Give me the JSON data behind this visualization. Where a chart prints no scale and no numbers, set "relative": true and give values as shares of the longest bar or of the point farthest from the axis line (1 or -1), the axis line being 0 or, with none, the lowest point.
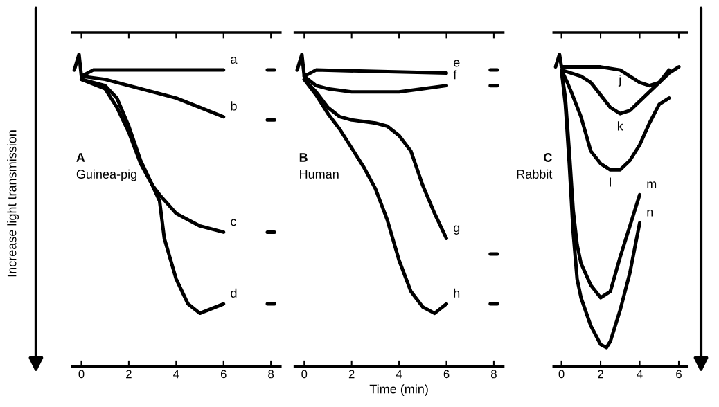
{
  "chart_data": [
    {
      "type": "line",
      "relative": true,
      "ylabel": "Increase light transmission",
      "annotations": [
        "A",
        "Guinea-pig"
      ],
      "xlim": [
        -0.4,
        8.4
      ],
      "xticks": [
        0,
        2,
        4,
        6,
        8
      ],
      "tick_labels": "x",
      "grid": false,
      "legend": false,
      "marker": "none",
      "line_style": "solid",
      "series": [
        {
          "name": "a",
          "color": "#000000",
          "x": [
            -0.3,
            -0.1,
            0,
            0.5,
            6,
            7,
            7.85,
            8.15
          ],
          "values": [
            0.95,
            1,
            0.93,
            0.95,
            0.95,
            null,
            0.95,
            0.95
          ]
        },
        {
          "name": "b",
          "color": "#000000",
          "x": [
            0,
            1,
            2,
            3,
            4,
            5,
            6,
            7,
            7.85,
            8.15
          ],
          "values": [
            0.93,
            0.92,
            0.9,
            0.88,
            0.86,
            0.83,
            0.8,
            null,
            0.79,
            0.79
          ]
        },
        {
          "name": "c",
          "color": "#000000",
          "x": [
            0,
            1,
            1.5,
            2,
            2.5,
            3,
            3.3,
            4,
            5,
            6,
            7,
            7.85,
            8.15
          ],
          "values": [
            0.92,
            0.9,
            0.86,
            0.77,
            0.66,
            0.58,
            0.55,
            0.49,
            0.45,
            0.43,
            null,
            0.43,
            0.43
          ]
        },
        {
          "name": "d",
          "color": "#000000",
          "x": [
            0,
            1,
            1.5,
            2,
            2.5,
            3,
            3.3,
            3.5,
            4,
            4.5,
            5,
            6,
            7,
            7.85,
            8.15
          ],
          "values": [
            0.92,
            0.89,
            0.83,
            0.75,
            0.65,
            0.58,
            0.53,
            0.41,
            0.28,
            0.2,
            0.17,
            0.2,
            null,
            0.2,
            0.2
          ]
        }
      ]
    },
    {
      "type": "line",
      "relative": true,
      "xlabel": "Time (min)",
      "annotations": [
        "B",
        "Human"
      ],
      "xlim": [
        -0.4,
        8.4
      ],
      "xticks": [
        0,
        2,
        4,
        6,
        8
      ],
      "tick_labels": "x",
      "grid": false,
      "legend": false,
      "marker": "none",
      "line_style": "solid",
      "series": [
        {
          "name": "e",
          "color": "#000000",
          "x": [
            -0.3,
            -0.1,
            0,
            0.5,
            6,
            7,
            7.85,
            8.15
          ],
          "values": [
            0.95,
            1,
            0.93,
            0.95,
            0.94,
            null,
            0.95,
            0.95
          ]
        },
        {
          "name": "f",
          "color": "#000000",
          "x": [
            0,
            0.5,
            1,
            2,
            3,
            4,
            5,
            6,
            7,
            7.85,
            8.15
          ],
          "values": [
            0.93,
            0.9,
            0.89,
            0.88,
            0.88,
            0.88,
            0.89,
            0.9,
            null,
            0.9,
            0.9
          ]
        },
        {
          "name": "g",
          "color": "#000000",
          "x": [
            0,
            0.5,
            1,
            1.5,
            2,
            3,
            3.5,
            4,
            4.5,
            5,
            5.5,
            6,
            7,
            7.85,
            8.15
          ],
          "values": [
            0.92,
            0.88,
            0.83,
            0.8,
            0.79,
            0.78,
            0.77,
            0.74,
            0.69,
            0.58,
            0.49,
            0.41,
            null,
            0.36,
            0.36
          ]
        },
        {
          "name": "h",
          "color": "#000000",
          "x": [
            0,
            0.5,
            1,
            1.5,
            2,
            2.5,
            3,
            3.5,
            4,
            4.5,
            5,
            5.5,
            6,
            7,
            7.85,
            8.15
          ],
          "values": [
            0.92,
            0.87,
            0.81,
            0.76,
            0.7,
            0.64,
            0.57,
            0.47,
            0.34,
            0.24,
            0.19,
            0.17,
            0.2,
            null,
            0.2,
            0.2
          ]
        }
      ]
    },
    {
      "type": "line",
      "relative": true,
      "annotations": [
        "C",
        "Rabbit"
      ],
      "xlim": [
        -0.4,
        6.4
      ],
      "xticks": [
        0,
        2,
        4,
        6
      ],
      "tick_labels": "x",
      "grid": false,
      "legend": false,
      "marker": "none",
      "line_style": "solid",
      "series": [
        {
          "name": "j",
          "color": "#000000",
          "x": [
            -0.3,
            -0.1,
            0,
            1,
            2,
            3,
            4,
            4.5,
            5,
            5.5,
            6
          ],
          "values": [
            0.96,
            1,
            0.96,
            0.96,
            0.96,
            0.95,
            0.91,
            0.9,
            0.91,
            0.94,
            0.96
          ]
        },
        {
          "name": "k",
          "color": "#000000",
          "x": [
            0,
            0.5,
            1,
            1.5,
            2,
            2.5,
            3,
            3.5,
            4,
            4.5,
            5,
            5.5
          ],
          "values": [
            0.95,
            0.94,
            0.93,
            0.91,
            0.87,
            0.83,
            0.81,
            0.82,
            0.85,
            0.88,
            0.91,
            0.95
          ]
        },
        {
          "name": "l",
          "color": "#000000",
          "x": [
            0,
            0.3,
            0.5,
            1,
            1.5,
            2,
            2.5,
            3,
            3.5,
            4,
            4.5,
            5,
            5.5
          ],
          "values": [
            0.95,
            0.91,
            0.88,
            0.8,
            0.69,
            0.65,
            0.63,
            0.63,
            0.66,
            0.71,
            0.78,
            0.84,
            0.86
          ]
        },
        {
          "name": "m",
          "color": "#000000",
          "x": [
            0,
            0.2,
            0.4,
            0.6,
            0.8,
            1,
            1.5,
            2,
            2.5,
            3,
            3.5,
            4
          ],
          "values": [
            0.95,
            0.86,
            0.69,
            0.5,
            0.39,
            0.33,
            0.26,
            0.22,
            0.24,
            0.35,
            0.45,
            0.55
          ]
        },
        {
          "name": "n",
          "color": "#000000",
          "x": [
            0,
            0.2,
            0.4,
            0.6,
            0.8,
            1,
            1.5,
            2,
            2.3,
            2.5,
            3,
            3.5,
            4
          ],
          "values": [
            0.95,
            0.84,
            0.65,
            0.43,
            0.28,
            0.22,
            0.13,
            0.07,
            0.06,
            0.08,
            0.18,
            0.3,
            0.46
          ]
        }
      ]
    }
  ]
}
